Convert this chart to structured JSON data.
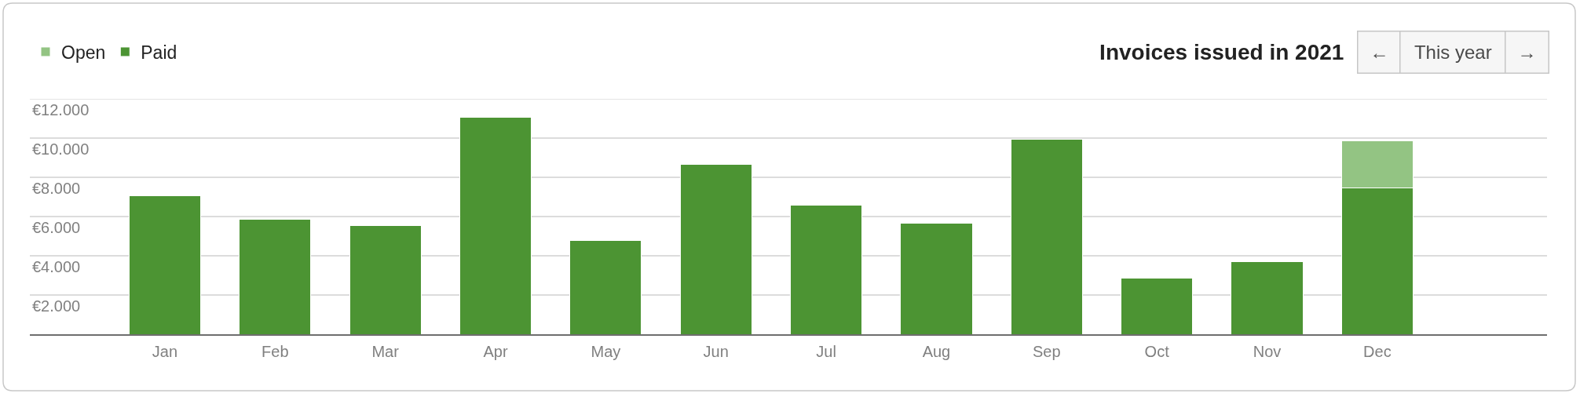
{
  "chart_data": {
    "type": "bar",
    "title": "Invoices issued in 2021",
    "categories": [
      "Jan",
      "Feb",
      "Mar",
      "Apr",
      "May",
      "Jun",
      "Jul",
      "Aug",
      "Sep",
      "Oct",
      "Nov",
      "Dec"
    ],
    "stacked": true,
    "series": [
      {
        "name": "Paid",
        "color": "#4c9433",
        "values": [
          7050,
          5850,
          5550,
          11050,
          4800,
          8650,
          6600,
          5650,
          9950,
          2850,
          3700,
          7450
        ]
      },
      {
        "name": "Open",
        "color": "#93c483",
        "values": [
          null,
          null,
          null,
          null,
          null,
          null,
          null,
          null,
          null,
          null,
          null,
          2400
        ]
      }
    ],
    "ylim": [
      0,
      12000
    ],
    "yticks": [
      {
        "value": 0,
        "label": null
      },
      {
        "value": 2000,
        "label": "€2.000"
      },
      {
        "value": 4000,
        "label": "€4.000"
      },
      {
        "value": 6000,
        "label": "€6.000"
      },
      {
        "value": 8000,
        "label": "€8.000"
      },
      {
        "value": 10000,
        "label": "€10.000"
      },
      {
        "value": 12000,
        "label": "€12.000"
      }
    ],
    "grid": "y",
    "legend": "top left",
    "annotations": [
      "←",
      "This year",
      "→"
    ]
  }
}
